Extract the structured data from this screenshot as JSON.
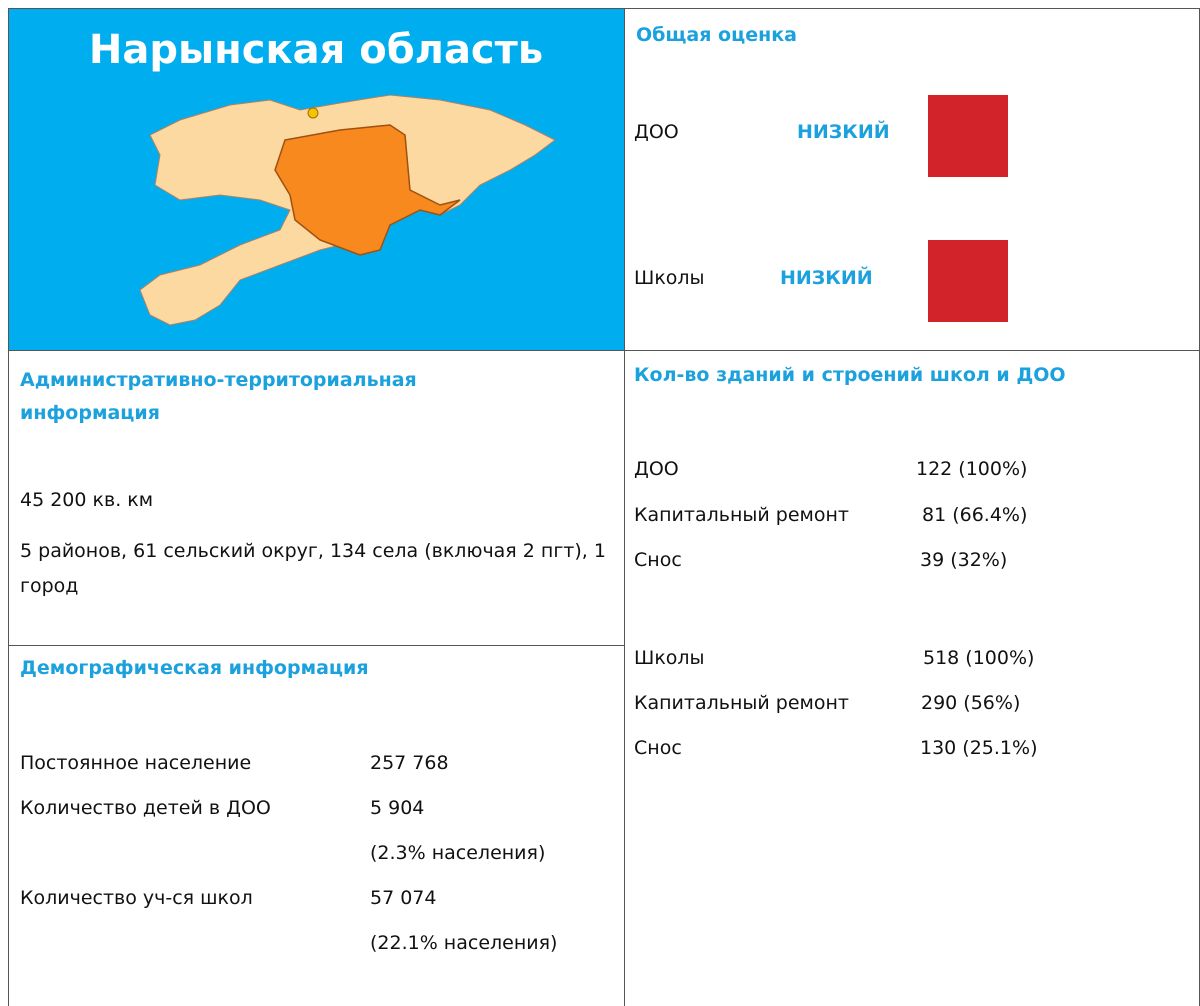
{
  "header": {
    "title": "Нарынская область"
  },
  "assessment": {
    "title": "Общая оценка",
    "rows": [
      {
        "label": "ДОО",
        "level": "НИЗКИЙ"
      },
      {
        "label": "Школы",
        "level": "НИЗКИЙ"
      }
    ]
  },
  "admin": {
    "title": "Административно-территориальная информация",
    "area": "45 200 кв. км",
    "divisions": "5 районов, 61 сельский округ, 134 села (включая 2 пгт), 1 город"
  },
  "demographics": {
    "title": "Демографическая информация",
    "rows": [
      {
        "label": "Постоянное население",
        "value": "257 768"
      },
      {
        "label": "Количество детей в ДОО",
        "value": "5 904",
        "note": "(2.3% населения)"
      },
      {
        "label": "Количество уч-ся школ",
        "value": "57 074",
        "note": "(22.1% населения)"
      }
    ]
  },
  "buildings": {
    "title": "Кол-во зданий и строений школ и ДОО",
    "rows": [
      {
        "label": "ДОО",
        "value": "122 (100%)"
      },
      {
        "label": "Капитальный ремонт",
        "value": "81 (66.4%)"
      },
      {
        "label": "Снос",
        "value": "39 (32%)"
      },
      {
        "label": "Школы",
        "value": "518 (100%)"
      },
      {
        "label": "Капитальный ремонт",
        "value": "290 (56%)"
      },
      {
        "label": "Снос",
        "value": "130 (25.1%)"
      }
    ]
  }
}
